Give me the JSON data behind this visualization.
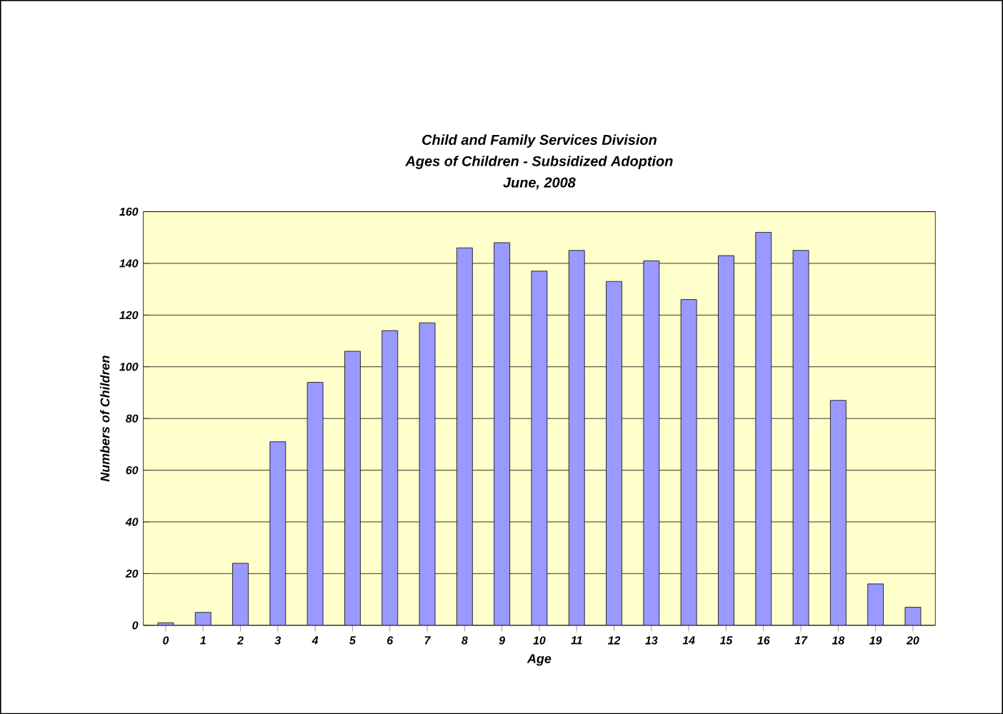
{
  "chart_data": {
    "type": "bar",
    "title": "Child and Family Services Division",
    "subtitle": "Ages of Children - Subsidized Adoption",
    "annotations": [
      "June, 2008"
    ],
    "xlabel": "Age",
    "ylabel": "Numbers of Children",
    "categories": [
      "0",
      "1",
      "2",
      "3",
      "4",
      "5",
      "6",
      "7",
      "8",
      "9",
      "10",
      "11",
      "12",
      "13",
      "14",
      "15",
      "16",
      "17",
      "18",
      "19",
      "20"
    ],
    "values": [
      1,
      5,
      24,
      71,
      94,
      106,
      114,
      117,
      146,
      148,
      137,
      145,
      133,
      141,
      126,
      143,
      152,
      145,
      87,
      16,
      7
    ],
    "color": "#9999ff",
    "ylim": [
      0,
      160
    ],
    "yticks": [
      0,
      20,
      40,
      60,
      80,
      100,
      120,
      140,
      160
    ],
    "grid": "y"
  }
}
